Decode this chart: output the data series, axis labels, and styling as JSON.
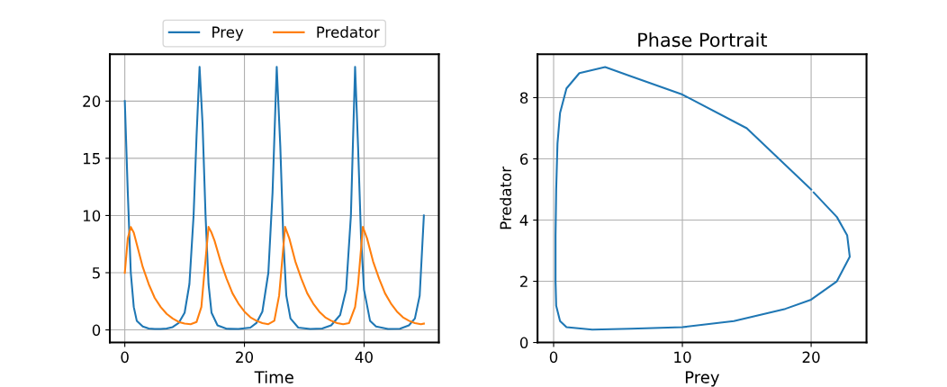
{
  "chart_data": [
    {
      "type": "line",
      "xlabel": "Time",
      "xlim": [
        -2.5,
        52.5
      ],
      "xticks": [
        0,
        20,
        40
      ],
      "ylim": [
        -1.1,
        24.1
      ],
      "yticks": [
        0,
        5,
        10,
        15,
        20
      ],
      "grid": true,
      "legend": "top",
      "marker": "none",
      "line_style": "solid",
      "series": [
        {
          "name": "Prey",
          "color": "#1f77b4",
          "x": [
            0,
            0.5,
            1,
            1.5,
            2,
            3,
            4,
            5,
            6,
            7,
            8,
            9,
            10,
            10.8,
            11.5,
            12,
            12.5,
            13,
            13.5,
            14,
            14.5,
            15.5,
            17,
            19,
            21,
            22,
            23,
            24,
            24.7,
            25.4,
            26,
            26.5,
            27,
            27.7,
            29,
            31,
            33,
            34.5,
            36,
            37,
            37.8,
            38.5,
            39,
            39.5,
            40,
            41,
            42,
            44,
            46,
            47.5,
            48.5,
            49.3,
            50
          ],
          "values": [
            20,
            12,
            5,
            2,
            0.8,
            0.3,
            0.12,
            0.08,
            0.08,
            0.12,
            0.25,
            0.6,
            1.5,
            4,
            10,
            17,
            23,
            18,
            10,
            4,
            1.5,
            0.4,
            0.1,
            0.08,
            0.2,
            0.6,
            1.6,
            5,
            12,
            23,
            16,
            8,
            3,
            1,
            0.2,
            0.08,
            0.12,
            0.4,
            1.3,
            3.5,
            10,
            23,
            16,
            8,
            3.5,
            0.8,
            0.3,
            0.08,
            0.1,
            0.4,
            1,
            3,
            10
          ]
        },
        {
          "name": "Predator",
          "color": "#ff7f0e",
          "x": [
            0,
            0.5,
            1,
            1.5,
            2,
            3,
            4,
            5,
            6,
            7,
            8,
            9,
            10,
            11,
            12,
            12.8,
            13.3,
            14,
            14.5,
            15,
            16,
            17,
            18,
            19,
            20,
            21,
            22,
            23,
            24,
            25,
            25.8,
            26.8,
            27.5,
            28.5,
            29.5,
            30.5,
            31.5,
            32.5,
            33.5,
            34.5,
            35.5,
            36.5,
            37.5,
            38.5,
            39,
            39.8,
            40.5,
            41.5,
            42.5,
            43.5,
            44.5,
            45.5,
            46.5,
            47.5,
            48.5,
            49.5,
            50
          ],
          "values": [
            5,
            8,
            9,
            8.5,
            7.5,
            5.5,
            4,
            2.8,
            2,
            1.4,
            1,
            0.7,
            0.55,
            0.5,
            0.7,
            2,
            5,
            9,
            8.5,
            7.8,
            6,
            4.5,
            3.2,
            2.3,
            1.6,
            1.1,
            0.8,
            0.6,
            0.5,
            0.8,
            3,
            9,
            8,
            6,
            4.5,
            3.2,
            2.3,
            1.6,
            1.1,
            0.8,
            0.6,
            0.5,
            0.6,
            2,
            4,
            9,
            8,
            6,
            4.5,
            3.2,
            2.3,
            1.6,
            1.1,
            0.8,
            0.6,
            0.5,
            0.55
          ]
        }
      ]
    },
    {
      "type": "line",
      "title": "Phase Portrait",
      "xlabel": "Prey",
      "ylabel": "Predator",
      "xlim": [
        -1.25,
        24.3
      ],
      "xticks": [
        0,
        10,
        20
      ],
      "ylim": [
        0,
        9.42
      ],
      "yticks": [
        0,
        2,
        4,
        6,
        8
      ],
      "grid": true,
      "marker": "none",
      "line_style": "solid",
      "series": [
        {
          "color": "#1f77b4",
          "x": [
            20,
            15,
            10,
            6,
            4,
            2,
            1,
            0.5,
            0.3,
            0.2,
            0.15,
            0.15,
            0.2,
            0.5,
            1,
            3,
            6,
            10,
            14,
            18,
            20,
            22,
            23,
            22.8,
            22,
            20.2
          ],
          "values": [
            5,
            7,
            8.1,
            8.7,
            9,
            8.8,
            8.3,
            7.5,
            6.5,
            5,
            3.5,
            2,
            1.2,
            0.7,
            0.5,
            0.42,
            0.45,
            0.5,
            0.7,
            1.1,
            1.4,
            2,
            2.8,
            3.5,
            4.1,
            4.9
          ]
        }
      ]
    }
  ]
}
